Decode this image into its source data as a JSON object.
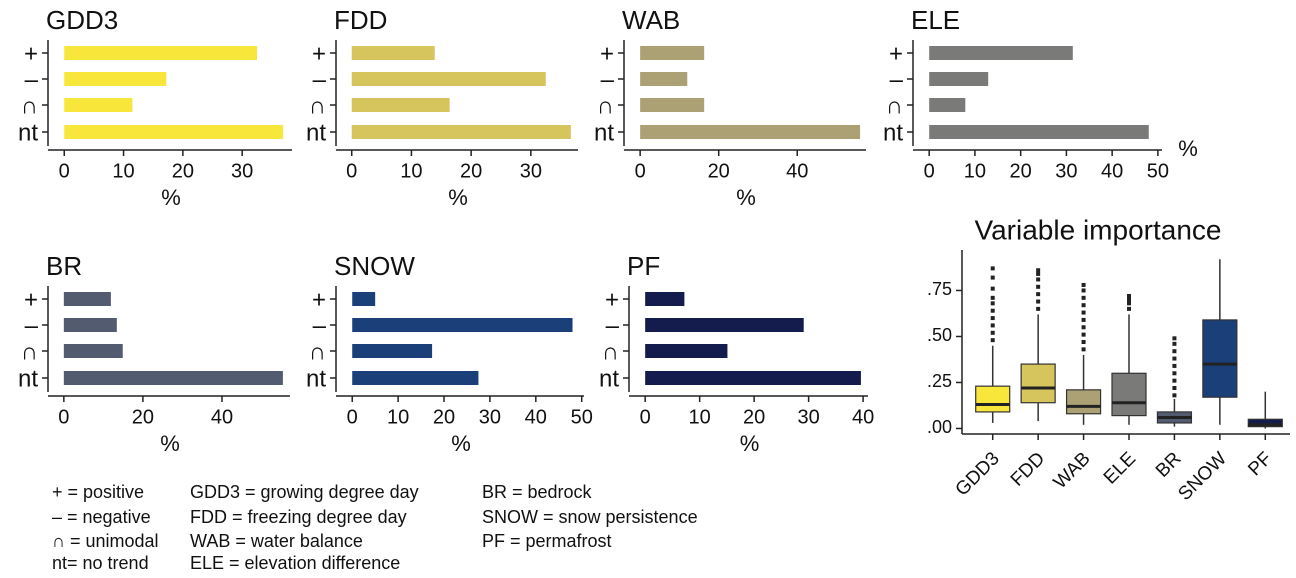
{
  "chart_data": [
    {
      "type": "bar",
      "orientation": "horizontal",
      "title": "GDD3",
      "categories": [
        "+",
        "–",
        "∩",
        "nt"
      ],
      "values": [
        32.5,
        17.2,
        11.5,
        36.9
      ],
      "color": "#f8e63a",
      "xlim": [
        -2.4,
        38.4
      ],
      "xticks": [
        0,
        10,
        20,
        30
      ],
      "xlabel": "%"
    },
    {
      "type": "bar",
      "orientation": "horizontal",
      "title": "FDD",
      "categories": [
        "+",
        "–",
        "∩",
        "nt"
      ],
      "values": [
        13.9,
        32.5,
        16.4,
        36.7
      ],
      "color": "#d6c45c",
      "xlim": [
        -2.3,
        37.9
      ],
      "xticks": [
        0,
        10,
        20,
        30
      ],
      "xlabel": "%"
    },
    {
      "type": "bar",
      "orientation": "horizontal",
      "title": "WAB",
      "categories": [
        "+",
        "–",
        "∩",
        "nt"
      ],
      "values": [
        16.3,
        12.0,
        16.3,
        56.0
      ],
      "color": "#aca175",
      "xlim": [
        -3.6,
        57.5
      ],
      "xticks": [
        0,
        20,
        40
      ],
      "xlabel": "%"
    },
    {
      "type": "bar",
      "orientation": "horizontal",
      "title": "ELE",
      "categories": [
        "+",
        "–",
        "∩",
        "nt"
      ],
      "values": [
        31.4,
        12.9,
        7.9,
        48.0
      ],
      "color": "#7a7a78",
      "xlim": [
        -3.1,
        50.9
      ],
      "xticks": [
        0,
        10,
        20,
        30,
        40,
        50
      ],
      "xlabel": "%"
    },
    {
      "type": "bar",
      "orientation": "horizontal",
      "title": "BR",
      "categories": [
        "+",
        "–",
        "∩",
        "nt"
      ],
      "values": [
        11.9,
        13.4,
        14.9,
        55.4
      ],
      "color": "#535b70",
      "xlim": [
        -3.5,
        57.2
      ],
      "xticks": [
        0,
        20,
        40
      ],
      "xlabel": "%"
    },
    {
      "type": "bar",
      "orientation": "horizontal",
      "title": "SNOW",
      "categories": [
        "+",
        "–",
        "∩",
        "nt"
      ],
      "values": [
        5.0,
        48.0,
        17.4,
        27.5
      ],
      "color": "#1b3f78",
      "xlim": [
        -3.1,
        50.5
      ],
      "xticks": [
        0,
        10,
        20,
        30,
        40,
        50
      ],
      "xlabel": "%"
    },
    {
      "type": "bar",
      "orientation": "horizontal",
      "title": "PF",
      "categories": [
        "+",
        "–",
        "∩",
        "nt"
      ],
      "values": [
        7.2,
        29.1,
        15.1,
        39.6
      ],
      "color": "#141c4e",
      "xlim": [
        -2.6,
        40.9
      ],
      "xticks": [
        0,
        10,
        20,
        30,
        40
      ],
      "xlabel": "%"
    },
    {
      "type": "box",
      "title": "Variable importance",
      "categories": [
        "GDD3",
        "FDD",
        "WAB",
        "ELE",
        "BR",
        "SNOW",
        "PF"
      ],
      "colors": [
        "#f8e63a",
        "#d6c45c",
        "#aca175",
        "#7a7a78",
        "#535b70",
        "#1b3f78",
        "#141c4e"
      ],
      "ylim": [
        -0.03,
        0.97
      ],
      "yticks": [
        {
          "value": 0,
          "label": ".00"
        },
        {
          "value": 0.25,
          "label": ".25"
        },
        {
          "value": 0.5,
          "label": ".50"
        },
        {
          "value": 0.75,
          "label": ".75"
        }
      ],
      "boxes": [
        {
          "whisker_low": 0.03,
          "q1": 0.09,
          "median": 0.13,
          "q3": 0.23,
          "whisker_high": 0.45,
          "outliers": [
            0.48,
            0.52,
            0.56,
            0.6,
            0.64,
            0.68,
            0.71,
            0.76,
            0.82,
            0.87
          ]
        },
        {
          "whisker_low": 0.04,
          "q1": 0.14,
          "median": 0.22,
          "q3": 0.35,
          "whisker_high": 0.62,
          "outliers": [
            0.65,
            0.69,
            0.73,
            0.77,
            0.81,
            0.84,
            0.86
          ]
        },
        {
          "whisker_low": 0.02,
          "q1": 0.08,
          "median": 0.12,
          "q3": 0.21,
          "whisker_high": 0.4,
          "outliers": [
            0.43,
            0.47,
            0.51,
            0.55,
            0.59,
            0.63,
            0.67,
            0.71,
            0.75,
            0.78
          ]
        },
        {
          "whisker_low": 0.02,
          "q1": 0.07,
          "median": 0.14,
          "q3": 0.3,
          "whisker_high": 0.62,
          "outliers": [
            0.65,
            0.68,
            0.7,
            0.72
          ]
        },
        {
          "whisker_low": 0.01,
          "q1": 0.03,
          "median": 0.06,
          "q3": 0.09,
          "whisker_high": 0.16,
          "outliers": [
            0.18,
            0.22,
            0.26,
            0.3,
            0.34,
            0.38,
            0.42,
            0.46,
            0.49
          ]
        },
        {
          "whisker_low": 0.02,
          "q1": 0.17,
          "median": 0.35,
          "q3": 0.59,
          "whisker_high": 0.92,
          "outliers": []
        },
        {
          "whisker_low": 0.0,
          "q1": 0.01,
          "median": 0.02,
          "q3": 0.05,
          "whisker_high": 0.2,
          "outliers": []
        }
      ]
    }
  ],
  "legend_text": [
    [
      "+ = positive",
      "– = negative",
      "∩ = unimodal",
      "nt= no trend"
    ],
    [
      "GDD3 = growing degree day",
      "FDD = freezing degree day",
      "WAB = water balance",
      "ELE = elevation difference"
    ],
    [
      "BR = bedrock",
      "SNOW = snow persistence",
      "PF = permafrost"
    ]
  ]
}
